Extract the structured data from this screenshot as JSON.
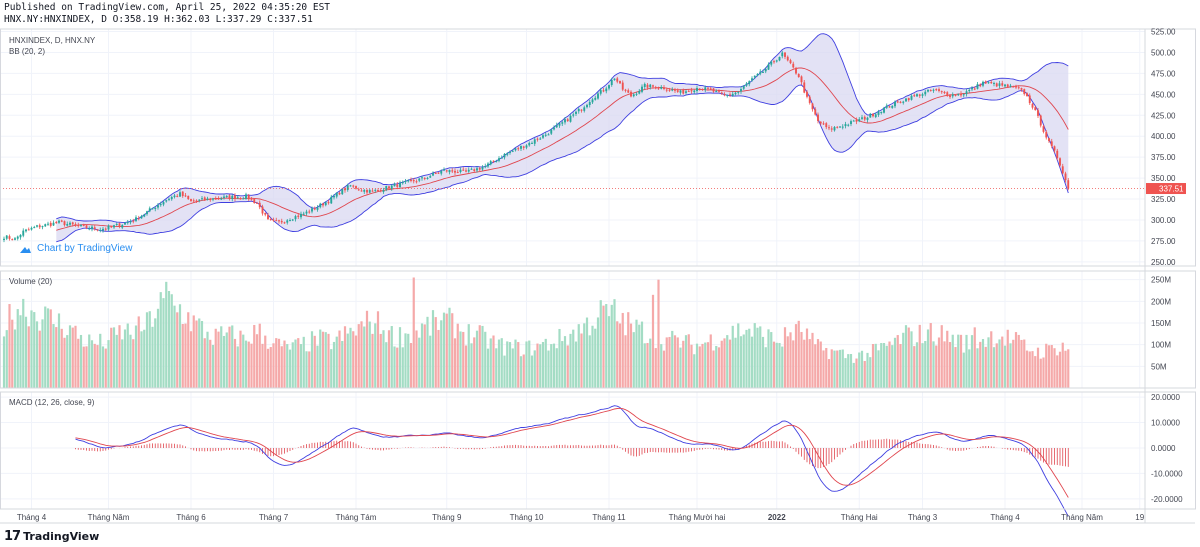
{
  "header": {
    "published": "Published on TradingView.com, April 25, 2022 04:35:20 EST",
    "ohlc": "HNX.NY:HNXINDEX, D O:358.19 H:362.03 L:337.29 C:337.51"
  },
  "watermark": {
    "text": "Chart by TradingView"
  },
  "footer": {
    "brand": "TradingView",
    "logo": "17"
  },
  "colors": {
    "up": "#26a69a",
    "down": "#ef5350",
    "bb_band": "#3f3fe0",
    "bb_basis": "#e0464e",
    "bb_fill": "#dad8f2",
    "vol_up": "#a3dcc4",
    "vol_down": "#f5a9a9",
    "macd": "#3f3fe0",
    "signal": "#e0464e",
    "grid": "#f0f3fa",
    "last_price": "#ef5350"
  },
  "chart_data": [
    {
      "type": "candlestick",
      "title": "HNXINDEX, D, HNX.NY",
      "indicator": "BB (20, 2)",
      "ylim": [
        245,
        528
      ],
      "yticks": [
        250,
        275,
        300,
        325,
        350,
        375,
        400,
        425,
        450,
        475,
        500,
        525
      ],
      "ytick_labels": [
        "250.00",
        "275.00",
        "300.00",
        "325.00",
        "350.00",
        "375.00",
        "400.00",
        "425.00",
        "450.00",
        "475.00",
        "500.00",
        "525.00"
      ],
      "last_price": 337.51,
      "last_price_label": "337.51",
      "close_keypoints": [
        [
          0,
          280
        ],
        [
          4,
          277
        ],
        [
          7,
          286
        ],
        [
          12,
          292
        ],
        [
          20,
          297
        ],
        [
          28,
          292
        ],
        [
          35,
          289
        ],
        [
          42,
          294
        ],
        [
          48,
          301
        ],
        [
          55,
          316
        ],
        [
          60,
          326
        ],
        [
          64,
          331
        ],
        [
          68,
          322
        ],
        [
          75,
          325
        ],
        [
          82,
          327
        ],
        [
          88,
          328
        ],
        [
          92,
          320
        ],
        [
          96,
          299
        ],
        [
          100,
          297
        ],
        [
          104,
          302
        ],
        [
          108,
          306
        ],
        [
          112,
          312
        ],
        [
          118,
          323
        ],
        [
          122,
          333
        ],
        [
          126,
          341
        ],
        [
          130,
          336
        ],
        [
          134,
          334
        ],
        [
          142,
          341
        ],
        [
          152,
          349
        ],
        [
          160,
          359
        ],
        [
          168,
          357
        ],
        [
          175,
          364
        ],
        [
          182,
          378
        ],
        [
          190,
          390
        ],
        [
          197,
          402
        ],
        [
          204,
          418
        ],
        [
          210,
          433
        ],
        [
          214,
          446
        ],
        [
          218,
          455
        ],
        [
          222,
          470
        ],
        [
          225,
          456
        ],
        [
          228,
          448
        ],
        [
          233,
          460
        ],
        [
          240,
          458
        ],
        [
          246,
          452
        ],
        [
          252,
          458
        ],
        [
          257,
          455
        ],
        [
          262,
          448
        ],
        [
          267,
          453
        ],
        [
          272,
          468
        ],
        [
          276,
          477
        ],
        [
          280,
          490
        ],
        [
          283,
          498
        ],
        [
          286,
          485
        ],
        [
          289,
          472
        ],
        [
          292,
          445
        ],
        [
          296,
          418
        ],
        [
          300,
          408
        ],
        [
          304,
          412
        ],
        [
          309,
          417
        ],
        [
          314,
          423
        ],
        [
          320,
          433
        ],
        [
          326,
          442
        ],
        [
          332,
          449
        ],
        [
          338,
          455
        ],
        [
          344,
          449
        ],
        [
          348,
          450
        ],
        [
          352,
          456
        ],
        [
          356,
          464
        ],
        [
          360,
          462
        ],
        [
          364,
          460
        ],
        [
          368,
          457
        ],
        [
          371,
          452
        ],
        [
          374,
          436
        ],
        [
          377,
          415
        ],
        [
          380,
          392
        ],
        [
          383,
          375
        ],
        [
          385,
          358
        ],
        [
          387,
          337.51
        ]
      ],
      "bb_n": 20,
      "bb_k": 2
    },
    {
      "type": "bar",
      "title": "Volume (20)",
      "ylim": [
        0,
        270
      ],
      "yticks": [
        50,
        100,
        150,
        200,
        250
      ],
      "ytick_labels": [
        "50M",
        "100M",
        "150M",
        "200M",
        "250M"
      ],
      "volume_keypoints": [
        [
          0,
          150
        ],
        [
          6,
          195
        ],
        [
          12,
          175
        ],
        [
          18,
          160
        ],
        [
          24,
          140
        ],
        [
          30,
          110
        ],
        [
          36,
          105
        ],
        [
          42,
          130
        ],
        [
          48,
          135
        ],
        [
          52,
          150
        ],
        [
          56,
          190
        ],
        [
          60,
          215
        ],
        [
          64,
          185
        ],
        [
          68,
          160
        ],
        [
          72,
          140
        ],
        [
          76,
          120
        ],
        [
          82,
          125
        ],
        [
          88,
          115
        ],
        [
          92,
          135
        ],
        [
          96,
          115
        ],
        [
          102,
          95
        ],
        [
          108,
          100
        ],
        [
          114,
          115
        ],
        [
          120,
          110
        ],
        [
          126,
          130
        ],
        [
          130,
          145
        ],
        [
          134,
          160
        ],
        [
          138,
          140
        ],
        [
          142,
          120
        ],
        [
          148,
          130
        ],
        [
          154,
          145
        ],
        [
          160,
          160
        ],
        [
          164,
          150
        ],
        [
          168,
          130
        ],
        [
          174,
          120
        ],
        [
          180,
          100
        ],
        [
          186,
          95
        ],
        [
          192,
          95
        ],
        [
          198,
          105
        ],
        [
          204,
          120
        ],
        [
          210,
          140
        ],
        [
          214,
          160
        ],
        [
          218,
          180
        ],
        [
          222,
          170
        ],
        [
          228,
          145
        ],
        [
          234,
          130
        ],
        [
          240,
          115
        ],
        [
          246,
          110
        ],
        [
          252,
          100
        ],
        [
          258,
          115
        ],
        [
          264,
          130
        ],
        [
          270,
          140
        ],
        [
          276,
          125
        ],
        [
          282,
          110
        ],
        [
          286,
          130
        ],
        [
          290,
          135
        ],
        [
          296,
          95
        ],
        [
          302,
          85
        ],
        [
          308,
          75
        ],
        [
          314,
          80
        ],
        [
          320,
          95
        ],
        [
          326,
          115
        ],
        [
          332,
          125
        ],
        [
          338,
          130
        ],
        [
          344,
          120
        ],
        [
          350,
          105
        ],
        [
          356,
          115
        ],
        [
          360,
          125
        ],
        [
          364,
          120
        ],
        [
          368,
          110
        ],
        [
          372,
          95
        ],
        [
          376,
          85
        ],
        [
          380,
          90
        ],
        [
          384,
          100
        ],
        [
          387,
          95
        ]
      ],
      "volume_spikes": [
        [
          59,
          245
        ],
        [
          62,
          190
        ],
        [
          149,
          255
        ],
        [
          222,
          205
        ],
        [
          236,
          215
        ],
        [
          238,
          250
        ],
        [
          289,
          155
        ],
        [
          328,
          145
        ],
        [
          353,
          140
        ]
      ]
    },
    {
      "type": "line",
      "title": "MACD (12, 26, close, 9)",
      "series_names": [
        "MACD",
        "Signal",
        "Histogram"
      ],
      "ylim": [
        -24,
        22
      ],
      "yticks": [
        20,
        10,
        0,
        -10,
        -20
      ],
      "ytick_labels": [
        "20.0000",
        "10.0000",
        "0.0000",
        "-10.0000",
        "-20.0000"
      ]
    }
  ],
  "time_axis": {
    "labels": [
      {
        "text": "Tháng 4",
        "bar": 10
      },
      {
        "text": "Tháng Năm",
        "bar": 38
      },
      {
        "text": "Tháng 6",
        "bar": 68
      },
      {
        "text": "Tháng 7",
        "bar": 98
      },
      {
        "text": "Tháng Tám",
        "bar": 128
      },
      {
        "text": "Tháng 9",
        "bar": 161
      },
      {
        "text": "Tháng 10",
        "bar": 190
      },
      {
        "text": "Tháng 11",
        "bar": 220
      },
      {
        "text": "Tháng Mười hai",
        "bar": 252
      },
      {
        "text": "2022",
        "bar": 281
      },
      {
        "text": "Tháng Hai",
        "bar": 311
      },
      {
        "text": "Tháng 3",
        "bar": 334
      },
      {
        "text": "Tháng 4",
        "bar": 364
      },
      {
        "text": "Tháng Năm",
        "bar": 392
      },
      {
        "text": "19",
        "bar": 413
      }
    ]
  }
}
